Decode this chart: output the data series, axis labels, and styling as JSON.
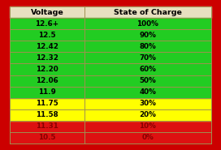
{
  "headers": [
    "Voltage",
    "State of Charge"
  ],
  "rows": [
    [
      "12.6+",
      "100%"
    ],
    [
      "12.5",
      "90%"
    ],
    [
      "12.42",
      "80%"
    ],
    [
      "12.32",
      "70%"
    ],
    [
      "12.20",
      "60%"
    ],
    [
      "12.06",
      "50%"
    ],
    [
      "11.9",
      "40%"
    ],
    [
      "11.75",
      "30%"
    ],
    [
      "11.58",
      "20%"
    ],
    [
      "11.31",
      "10%"
    ],
    [
      "10.5",
      "0%"
    ]
  ],
  "row_colors": [
    "#22cc22",
    "#22cc22",
    "#22cc22",
    "#22cc22",
    "#22cc22",
    "#22cc22",
    "#22cc22",
    "#ffff00",
    "#ffff00",
    "#dd1111",
    "#dd1111"
  ],
  "header_bg": "#e8e0c0",
  "border_color": "#cc0000",
  "grid_color": "#a09050",
  "header_font_color": "#000000",
  "green_font_color": "#000000",
  "yellow_font_color": "#000000",
  "red_font_color": "#880000",
  "col_split": 0.37,
  "border_thickness": 0.045,
  "figsize": [
    2.72,
    1.85
  ],
  "dpi": 100
}
